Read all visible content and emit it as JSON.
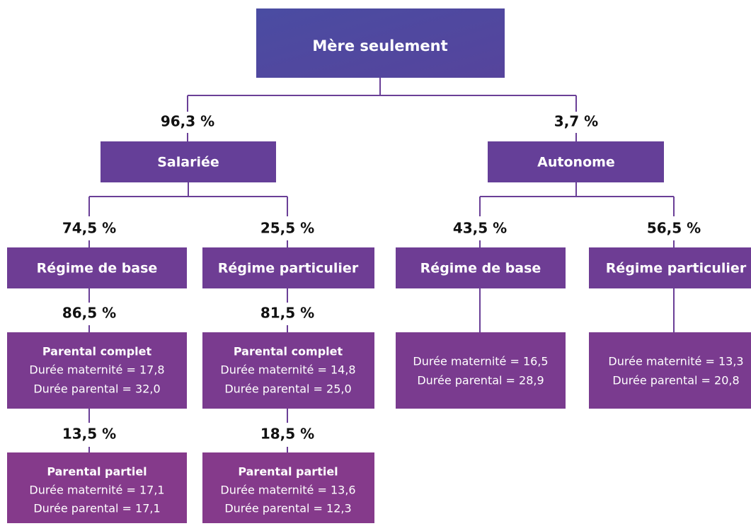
{
  "nodes": [
    {
      "label": "Mère seulement"
    },
    {
      "label": "Salariée"
    },
    {
      "label": "Autonome"
    },
    {
      "label": "Régime de base"
    },
    {
      "label": "Régime particulier"
    },
    {
      "label": "Régime de base"
    },
    {
      "label": "Régime particulier"
    },
    {
      "title": "Parental complet",
      "lines": [
        "Durée maternité = 17,8",
        "Durée parental = 32,0"
      ]
    },
    {
      "title": "Parental complet",
      "lines": [
        "Durée maternité = 14,8",
        "Durée parental = 25,0"
      ]
    },
    {
      "lines": [
        "Durée maternité = 16,5",
        "Durée parental = 28,9"
      ]
    },
    {
      "lines": [
        "Durée maternité = 13,3",
        "Durée parental = 20,8"
      ]
    },
    {
      "title": "Parental partiel",
      "lines": [
        "Durée maternité = 17,1",
        "Durée parental = 17,1"
      ]
    },
    {
      "title": "Parental partiel",
      "lines": [
        "Durée maternité = 13,6",
        "Durée parental = 12,3"
      ]
    }
  ],
  "edges": [
    {
      "label": "96,3 %"
    },
    {
      "label": "3,7 %"
    },
    {
      "label": "74,5 %"
    },
    {
      "label": "25,5 %"
    },
    {
      "label": "43,5 %"
    },
    {
      "label": "56,5 %"
    },
    {
      "label": "86,5 %"
    },
    {
      "label": "81,5 %"
    },
    {
      "label": "13,5 %"
    },
    {
      "label": "18,5 %"
    }
  ]
}
